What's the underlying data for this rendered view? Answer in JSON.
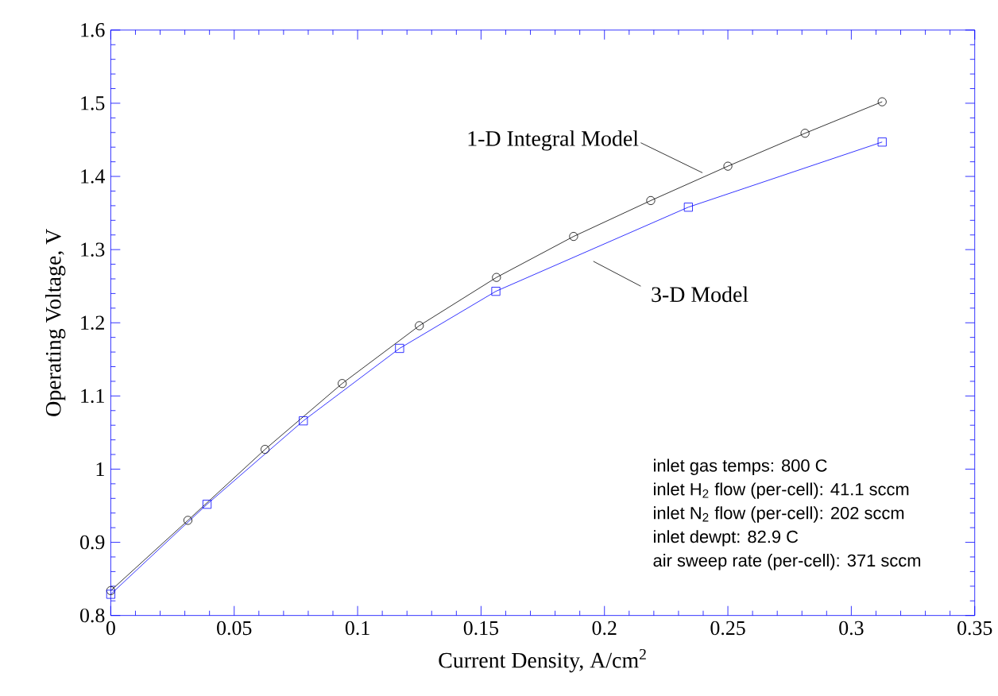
{
  "chart_data": {
    "type": "line",
    "xlabel": "Current Density, A/cm$^{2}$",
    "ylabel": "Operating Voltage, V",
    "xlim": [
      0,
      0.35
    ],
    "ylim": [
      0.8,
      1.6
    ],
    "xticks": [
      0,
      0.05,
      0.1,
      0.15,
      0.2,
      0.25,
      0.3,
      0.35
    ],
    "yticks": [
      0.8,
      0.9,
      1,
      1.1,
      1.2,
      1.3,
      1.4,
      1.5,
      1.6
    ],
    "grid": false,
    "legend": false,
    "line_style": "solid",
    "series": [
      {
        "name": "1-D Integral Model",
        "color": "#000000",
        "marker": "circle",
        "x": [
          0,
          0.03125,
          0.0625,
          0.09375,
          0.125,
          0.15625,
          0.1875,
          0.21875,
          0.25,
          0.28125,
          0.3125
        ],
        "values": [
          0.834,
          0.93,
          1.027,
          1.117,
          1.196,
          1.262,
          1.318,
          1.367,
          1.414,
          1.459,
          1.502
        ]
      },
      {
        "name": "3-D Model",
        "color": "#0000ff",
        "marker": "square",
        "x": [
          0,
          0.039,
          0.078,
          0.117,
          0.156,
          0.234,
          0.3125
        ],
        "values": [
          0.829,
          0.952,
          1.066,
          1.165,
          1.243,
          1.358,
          1.447
        ]
      }
    ],
    "annotations": [
      "inlet gas temps:  800 C",
      "inlet H$_{2}$ flow (per-cell): 41.1 sccm",
      "inlet N$_{2}$ flow (per-cell): 202 sccm",
      "inlet dewpt: 82.9 C",
      "air sweep rate (per-cell): 371 sccm"
    ]
  }
}
